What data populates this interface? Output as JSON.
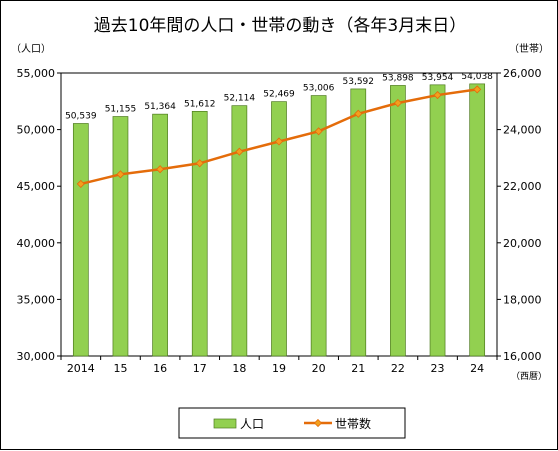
{
  "chart_data": {
    "type": "bar+line",
    "title": "過去10年間の人口・世帯の動き（各年3月末日）",
    "y_left_unit": "（人口）",
    "y_right_unit": "（世帯）",
    "x_unit": "（西暦）",
    "categories": [
      "2014",
      "15",
      "16",
      "17",
      "18",
      "19",
      "20",
      "21",
      "22",
      "23",
      "24"
    ],
    "y_left_ticks": [
      "30,000",
      "35,000",
      "40,000",
      "45,000",
      "50,000",
      "55,000"
    ],
    "y_right_ticks": [
      "16,000",
      "18,000",
      "20,000",
      "22,000",
      "24,000",
      "26,000"
    ],
    "ylim_left": [
      30000,
      55000
    ],
    "ylim_right": [
      16000,
      26000
    ],
    "series": [
      {
        "name": "人口",
        "type": "bar",
        "axis": "left",
        "color": "#92D050",
        "values": [
          50539,
          51155,
          51364,
          51612,
          52114,
          52469,
          53006,
          53592,
          53898,
          53954,
          54038
        ],
        "labels": [
          "50,539",
          "51,155",
          "51,364",
          "51,612",
          "52,114",
          "52,469",
          "53,006",
          "53,592",
          "53,898",
          "53,954",
          "54,038"
        ]
      },
      {
        "name": "世帯数",
        "type": "line",
        "axis": "right",
        "color": "#E46C0A",
        "values": [
          22080,
          22420,
          22600,
          22810,
          23220,
          23580,
          23940,
          24560,
          24940,
          25220,
          25420
        ]
      }
    ],
    "grid": false,
    "legend": "bottom-center"
  }
}
